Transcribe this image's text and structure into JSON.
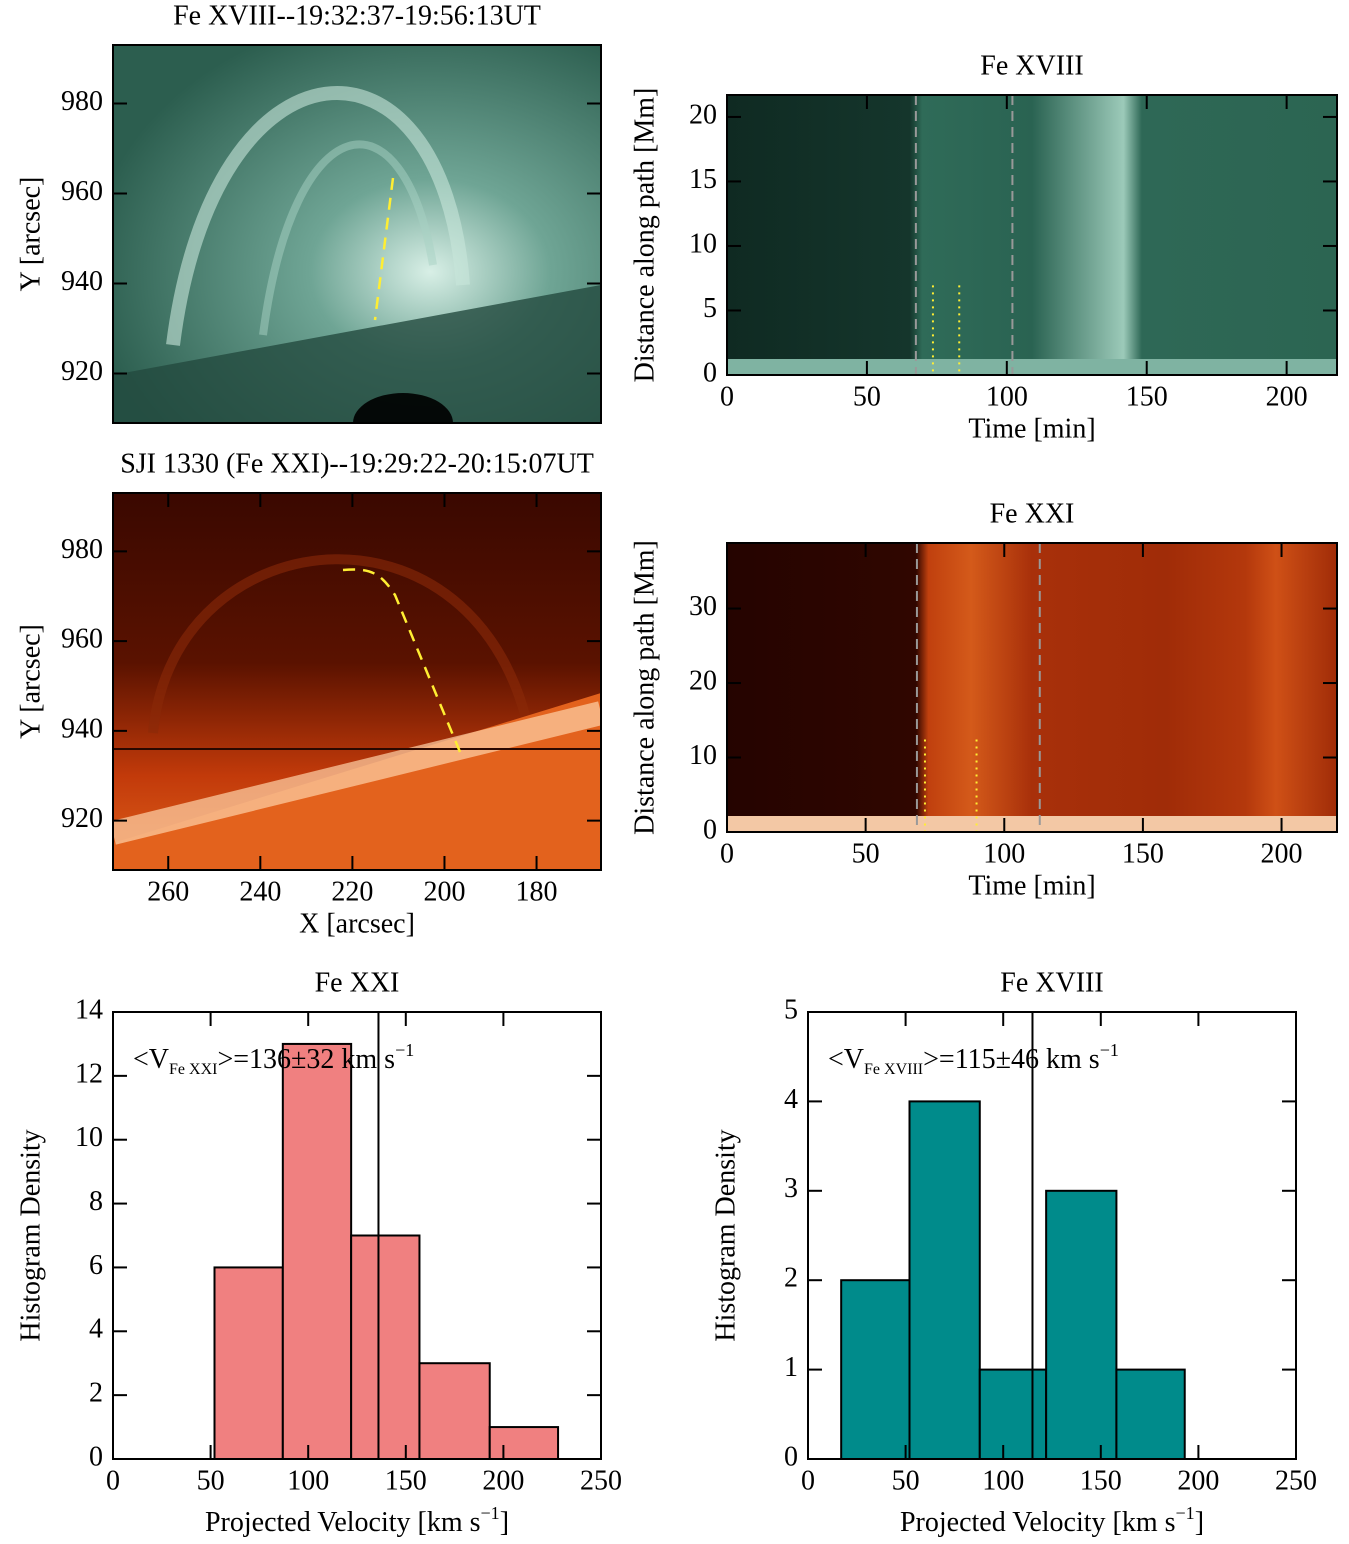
{
  "chart_data": [
    {
      "type": "image",
      "colormap": "green",
      "title": "Fe XVIII--19:32:37-19:56:13UT",
      "ylabel": "Y [arcsec]",
      "ylim": [
        909,
        993
      ],
      "yticks": [
        920,
        940,
        960,
        980
      ]
    },
    {
      "type": "timeslice",
      "colormap": "green",
      "title": "Fe XVIII",
      "xlabel": "Time [min]",
      "ylabel": "Distance along path [Mm]",
      "xlim": [
        0,
        218
      ],
      "xticks": [
        0,
        50,
        100,
        150,
        200
      ],
      "ylim": [
        0,
        21.7
      ],
      "yticks": [
        0,
        5,
        10,
        15,
        20
      ],
      "dashed_lines": [
        67.5,
        102
      ],
      "dotted_lines": [
        73.6,
        83
      ]
    },
    {
      "type": "image",
      "colormap": "red",
      "title": "SJI 1330 (Fe XXI)--19:29:22-20:15:07UT",
      "ylabel": "Y [arcsec]",
      "xlabel": "X [arcsec]",
      "xlim": [
        272,
        166
      ],
      "xticks": [
        260,
        240,
        220,
        200,
        180
      ],
      "ylim": [
        909,
        993
      ],
      "yticks": [
        920,
        940,
        960,
        980
      ]
    },
    {
      "type": "timeslice",
      "colormap": "red",
      "title": "Fe XXI",
      "xlabel": "Time [min]",
      "ylabel": "Distance along path [Mm]",
      "xlim": [
        0,
        220
      ],
      "xticks": [
        0,
        50,
        100,
        150,
        200
      ],
      "ylim": [
        0,
        38.8
      ],
      "yticks": [
        0,
        10,
        20,
        30
      ],
      "dashed_lines": [
        68.5,
        112.8
      ],
      "dotted_lines": [
        71.4,
        90
      ]
    },
    {
      "type": "histogram",
      "title": "Fe XXI",
      "color": "#f08080",
      "bins": [
        52,
        87,
        122,
        157,
        193,
        228
      ],
      "values": [
        6,
        13,
        7,
        3,
        1
      ],
      "mean": 136,
      "annotation": {
        "prefix": "<V",
        "sub": "Fe XXI",
        "suffix": ">=136±32 km s",
        "sup": "−1"
      },
      "xlabel": {
        "text": "Projected Velocity [km s",
        "sup": "−1",
        "end": "]"
      },
      "ylabel": "Histogram Density",
      "xlim": [
        0,
        250
      ],
      "xticks": [
        0,
        50,
        100,
        150,
        200,
        250
      ],
      "ylim": [
        0,
        14
      ],
      "yticks": [
        0,
        2,
        4,
        6,
        8,
        10,
        12,
        14
      ]
    },
    {
      "type": "histogram",
      "title": "Fe XVIII",
      "color": "#008b8b",
      "bins": [
        17,
        52,
        88,
        122,
        158,
        193
      ],
      "values": [
        2,
        4,
        1,
        3,
        1
      ],
      "mean": 115,
      "annotation": {
        "prefix": "<V",
        "sub": "Fe XVIII",
        "suffix": ">=115±46 km s",
        "sup": "−1"
      },
      "xlabel": {
        "text": "Projected Velocity [km s",
        "sup": "−1",
        "end": "]"
      },
      "ylabel": "Histogram Density",
      "xlim": [
        0,
        250
      ],
      "xticks": [
        0,
        50,
        100,
        150,
        200,
        250
      ],
      "ylim": [
        0,
        5
      ],
      "yticks": [
        0,
        1,
        2,
        3,
        4,
        5
      ]
    }
  ]
}
